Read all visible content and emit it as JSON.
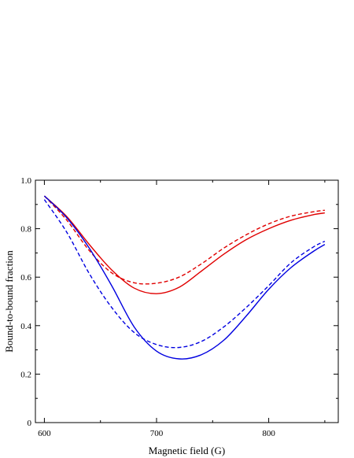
{
  "chart_data": {
    "type": "line",
    "xlabel": "Magnetic field (G)",
    "ylabel": "Bound-to-bound fraction",
    "xlim": [
      592,
      862
    ],
    "ylim": [
      0.0,
      1.0
    ],
    "x_ticks": [
      600,
      700,
      800
    ],
    "y_ticks": [
      0.0,
      0.2,
      0.4,
      0.6,
      0.8,
      1.0
    ],
    "y_tick_labels": [
      "0",
      "0.2",
      "0.4",
      "0.6",
      "0.8",
      "1.0"
    ],
    "grid": false,
    "legend": "none",
    "series": [
      {
        "color": "#e00000",
        "style": "solid",
        "x": [
          600,
          620,
          640,
          660,
          680,
          700,
          720,
          740,
          760,
          780,
          800,
          820,
          840,
          850
        ],
        "y": [
          0.935,
          0.85,
          0.735,
          0.63,
          0.555,
          0.532,
          0.558,
          0.625,
          0.695,
          0.755,
          0.8,
          0.835,
          0.858,
          0.865
        ]
      },
      {
        "color": "#e00000",
        "style": "dashed",
        "x": [
          600,
          620,
          640,
          660,
          680,
          700,
          720,
          740,
          760,
          780,
          800,
          820,
          840,
          850
        ],
        "y": [
          0.935,
          0.835,
          0.71,
          0.618,
          0.577,
          0.575,
          0.6,
          0.655,
          0.72,
          0.775,
          0.82,
          0.852,
          0.87,
          0.876
        ]
      },
      {
        "color": "#0000e0",
        "style": "solid",
        "x": [
          600,
          620,
          640,
          660,
          680,
          700,
          720,
          740,
          760,
          780,
          800,
          820,
          840,
          850
        ],
        "y": [
          0.935,
          0.845,
          0.72,
          0.565,
          0.395,
          0.295,
          0.263,
          0.28,
          0.34,
          0.44,
          0.55,
          0.64,
          0.707,
          0.735
        ]
      },
      {
        "color": "#0000e0",
        "style": "dashed",
        "x": [
          600,
          620,
          640,
          660,
          680,
          700,
          720,
          740,
          760,
          780,
          800,
          820,
          840,
          850
        ],
        "y": [
          0.92,
          0.785,
          0.615,
          0.475,
          0.372,
          0.322,
          0.31,
          0.335,
          0.395,
          0.475,
          0.565,
          0.66,
          0.725,
          0.748
        ]
      }
    ]
  }
}
